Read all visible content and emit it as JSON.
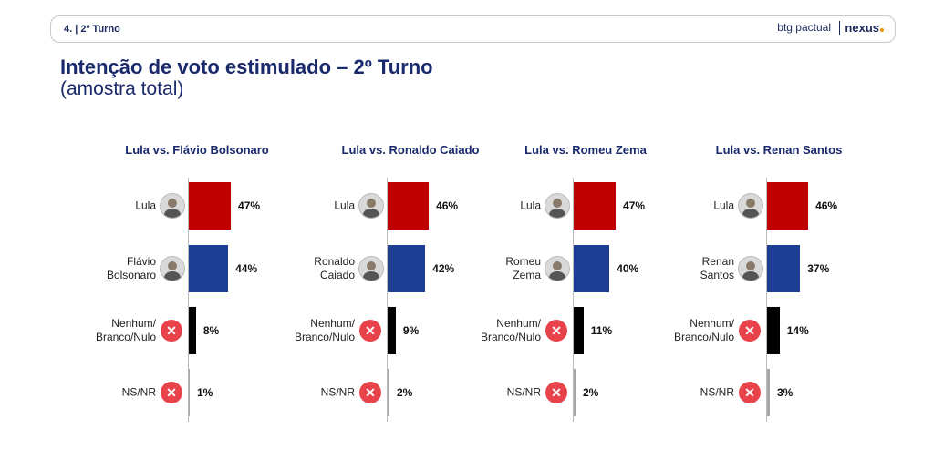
{
  "header": {
    "section": "4. | 2º Turno",
    "brand": "btg pactual",
    "partner": "nexus"
  },
  "title": "Intenção de voto estimulado – 2º Turno",
  "subtitle": "(amostra total)",
  "chart_data": [
    {
      "type": "bar",
      "title": "Lula vs. Flávio Bolsonaro",
      "categories": [
        "Lula",
        "Flávio\nBolsonaro",
        "Nenhum/\nBranco/Nulo",
        "NS/NR"
      ],
      "values": [
        47,
        44,
        8,
        1
      ],
      "value_labels": [
        "47%",
        "44%",
        "8%",
        "1%"
      ],
      "colors": [
        "#c00000",
        "#1c3f94",
        "#000000",
        "#a6a6a6"
      ]
    },
    {
      "type": "bar",
      "title": "Lula vs. Ronaldo Caiado",
      "categories": [
        "Lula",
        "Ronaldo\nCaiado",
        "Nenhum/\nBranco/Nulo",
        "NS/NR"
      ],
      "values": [
        46,
        42,
        9,
        2
      ],
      "value_labels": [
        "46%",
        "42%",
        "9%",
        "2%"
      ],
      "colors": [
        "#c00000",
        "#1c3f94",
        "#000000",
        "#a6a6a6"
      ]
    },
    {
      "type": "bar",
      "title": "Lula vs. Romeu Zema",
      "categories": [
        "Lula",
        "Romeu\nZema",
        "Nenhum/\nBranco/Nulo",
        "NS/NR"
      ],
      "values": [
        47,
        40,
        11,
        2
      ],
      "value_labels": [
        "47%",
        "40%",
        "11%",
        "2%"
      ],
      "colors": [
        "#c00000",
        "#1c3f94",
        "#000000",
        "#a6a6a6"
      ]
    },
    {
      "type": "bar",
      "title": "Lula vs. Renan Santos",
      "categories": [
        "Lula",
        "Renan\nSantos",
        "Nenhum/\nBranco/Nulo",
        "NS/NR"
      ],
      "values": [
        46,
        37,
        14,
        3
      ],
      "value_labels": [
        "46%",
        "37%",
        "14%",
        "3%"
      ],
      "colors": [
        "#c00000",
        "#1c3f94",
        "#000000",
        "#a6a6a6"
      ]
    }
  ]
}
